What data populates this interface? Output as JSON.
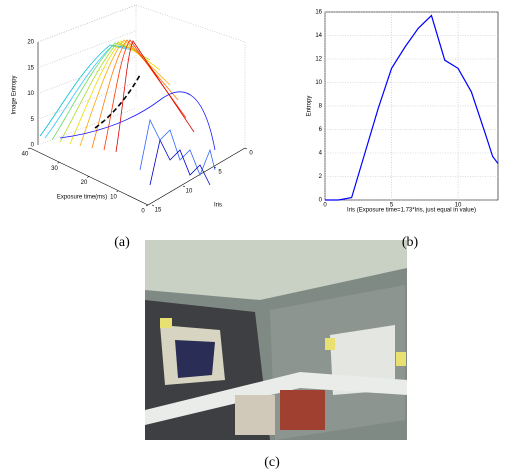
{
  "chart_data": [
    {
      "type": "surface",
      "zlabel": "Image Entropy",
      "xlabel": "Exposure time(ms)",
      "ylabel": "Iris",
      "zlim": [
        0,
        20
      ],
      "zticks": [
        0,
        5,
        10,
        15,
        20
      ],
      "xlim": [
        0,
        40
      ],
      "xticks": [
        0,
        10,
        20,
        30,
        40
      ],
      "ylim": [
        0,
        15
      ],
      "yticks": [
        0,
        5,
        10,
        15
      ],
      "grid": true
    },
    {
      "type": "line",
      "xlabel": "Iris (Exposure time=1.73*Iris, just equal in value)",
      "ylabel": "Entropy",
      "x": [
        0,
        1,
        2,
        3,
        4,
        5,
        6,
        7,
        8,
        9,
        10,
        11,
        12,
        12.6,
        13
      ],
      "series": [
        {
          "color": "#0000ff",
          "values": [
            0,
            0,
            0.2,
            4,
            7.8,
            11.2,
            13,
            14.6,
            15.7,
            11.9,
            11.2,
            9.2,
            5.8,
            3.7,
            3.1
          ]
        }
      ],
      "xlim": [
        0,
        13
      ],
      "xticks": [
        0,
        5,
        10
      ],
      "ylim": [
        0,
        16
      ],
      "yticks": [
        0,
        2,
        4,
        6,
        8,
        10,
        12,
        14,
        16
      ],
      "grid": true
    }
  ],
  "captions": [
    "(a)",
    "(b)",
    "(c)"
  ]
}
